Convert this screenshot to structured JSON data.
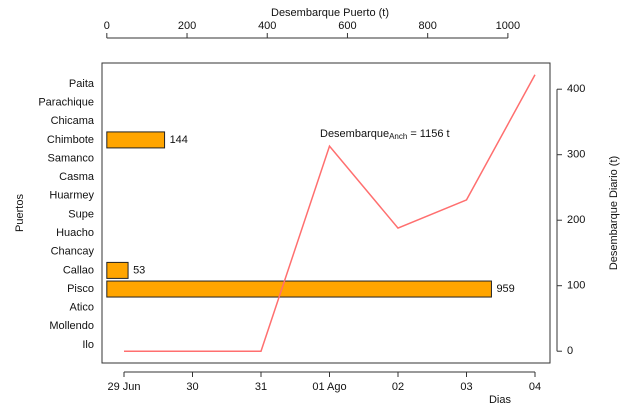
{
  "chart_data": [
    {
      "type": "hbar",
      "title": "Desembarque Puerto (t)",
      "y_label": "Puertos",
      "categories": [
        "Paita",
        "Parachique",
        "Chicama",
        "Chimbote",
        "Samanco",
        "Casma",
        "Huarmey",
        "Supe",
        "Huacho",
        "Chancay",
        "Callao",
        "Pisco",
        "Atico",
        "Mollendo",
        "Ilo"
      ],
      "values": [
        null,
        null,
        null,
        144,
        null,
        null,
        null,
        null,
        null,
        null,
        53,
        959,
        null,
        null,
        null
      ],
      "color": "#ffa500",
      "xlim": [
        -12,
        1105
      ],
      "xticks": [
        0,
        200,
        400,
        600,
        800,
        1000
      ]
    },
    {
      "type": "line",
      "x_label": "Dias",
      "y2_label": "Desembarque Diario (t)",
      "categories": [
        "29 Jun",
        "30",
        "31",
        "01 Ago",
        "02",
        "03",
        "04"
      ],
      "values": [
        0,
        0,
        0,
        313,
        188,
        231,
        422
      ],
      "color": "#ff6f6f",
      "y2lim": [
        -18,
        440
      ],
      "y2ticks": [
        0,
        100,
        200,
        300,
        400
      ],
      "annotation": {
        "text": "Desembarque",
        "subscript": "Anch",
        "suffix": "= 1156 t"
      }
    }
  ]
}
